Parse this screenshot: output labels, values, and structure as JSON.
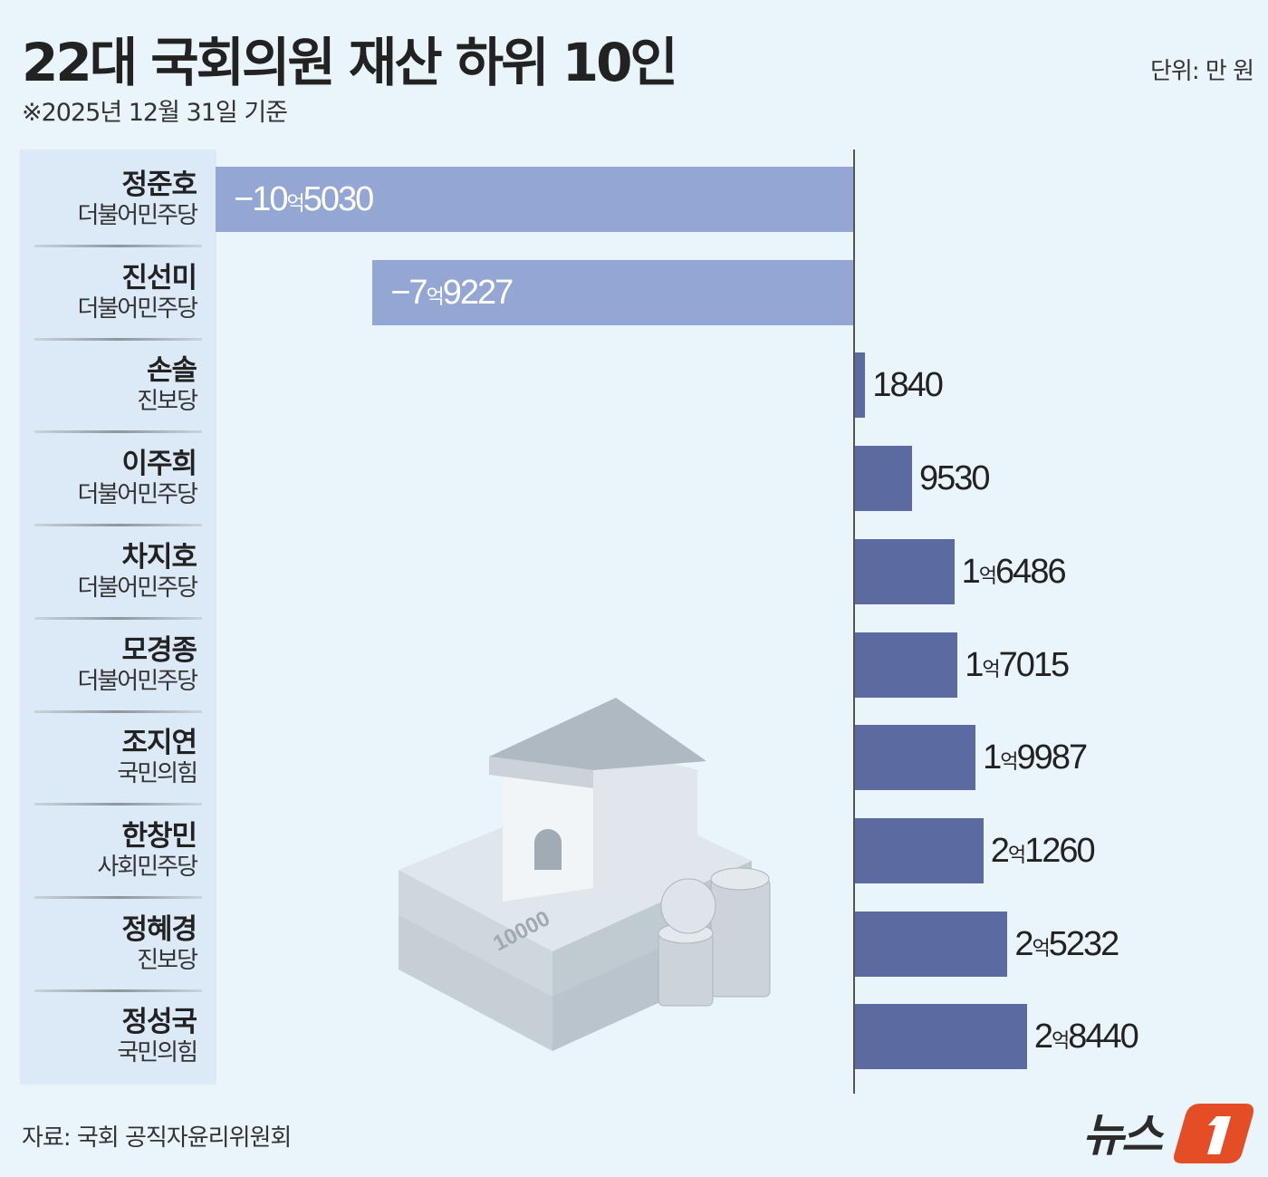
{
  "title": "22대 국회의원 재산 하위 10인",
  "subtitle": "※2025년 12월 31일 기준",
  "unit": "단위: 만 원",
  "source": "자료: 국회 공직자윤리위원회",
  "logo_text": "뉴스1",
  "colors": {
    "negative": "#94a6d3",
    "positive": "#5b6aa0",
    "background": "#eaf4fb",
    "logo": "#e44d26"
  },
  "chart_data": {
    "type": "bar",
    "orientation": "horizontal",
    "title": "22대 국회의원 재산 하위 10인",
    "unit": "만 원",
    "categories": [
      "정준호",
      "진선미",
      "손솔",
      "이주희",
      "차지호",
      "모경종",
      "조지연",
      "한창민",
      "정혜경",
      "정성국"
    ],
    "parties": [
      "더불어민주당",
      "더불어민주당",
      "진보당",
      "더불어민주당",
      "더불어민주당",
      "더불어민주당",
      "국민의힘",
      "사회민주당",
      "진보당",
      "국민의힘"
    ],
    "values": [
      -105030,
      -79227,
      1840,
      9530,
      16486,
      17015,
      19987,
      21260,
      25232,
      28440
    ],
    "labels": [
      "-10억5030",
      "-7억9227",
      "1840",
      "9530",
      "1억6486",
      "1억7015",
      "1억9987",
      "2억1260",
      "2억5232",
      "2억8440"
    ]
  }
}
